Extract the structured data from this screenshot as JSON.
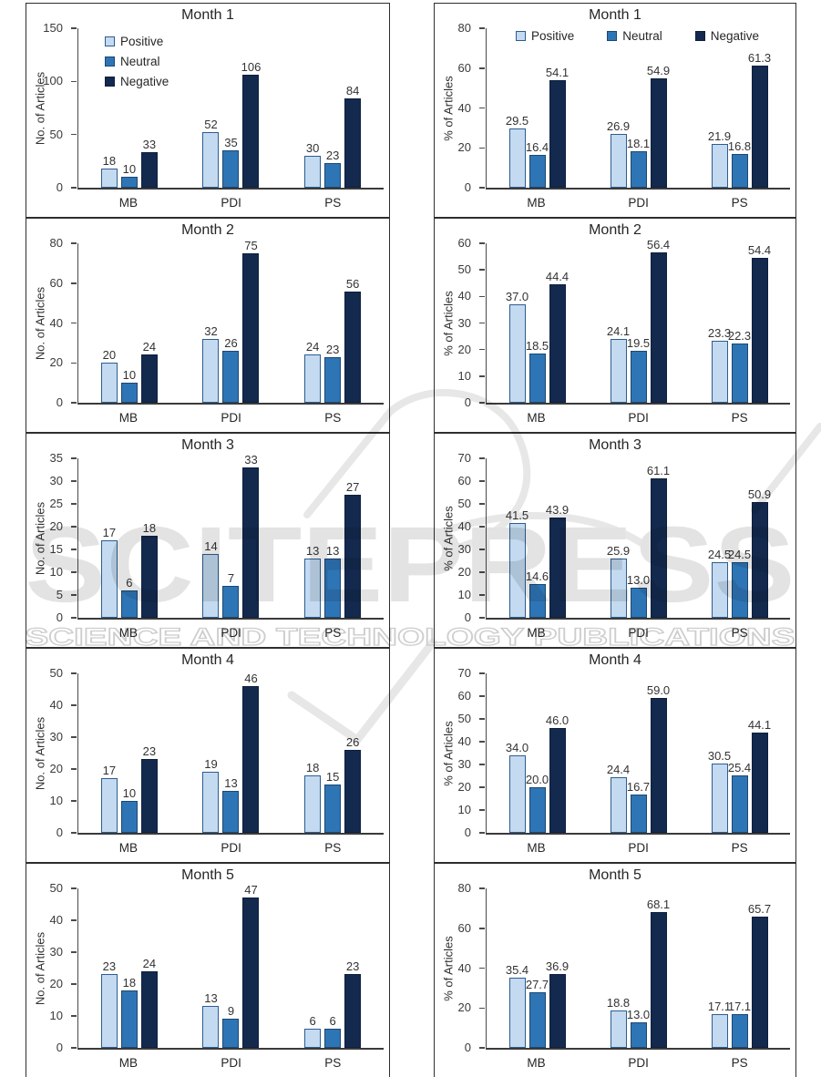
{
  "watermark": {
    "title": "SCITEPRESS",
    "subtitle": "SCIENCE AND TECHNOLOGY PUBLICATIONS"
  },
  "colors": {
    "positive_fill": "#C3DAF0",
    "positive_border": "#2E5C8F",
    "neutral_fill": "#2E75B6",
    "neutral_border": "#1C4770",
    "negative_fill": "#13294E",
    "negative_border": "#0E1F3C",
    "axis": "#3f3f3f",
    "watermark_gray": "#e3e3e3"
  },
  "chart_data": [
    {
      "type": "bar",
      "title": "Month 1",
      "ylabel": "No. of Articles",
      "ylim": [
        0,
        150
      ],
      "yticks": [
        0,
        50,
        100,
        150
      ],
      "categories": [
        "MB",
        "PDI",
        "PS"
      ],
      "legend": "vertical",
      "series": [
        {
          "name": "Positive",
          "values": [
            18,
            52,
            30
          ],
          "labels": [
            "18",
            "52",
            "30"
          ]
        },
        {
          "name": "Neutral",
          "values": [
            10,
            35,
            23
          ],
          "labels": [
            "10",
            "35",
            "23"
          ]
        },
        {
          "name": "Negative",
          "values": [
            33,
            106,
            84
          ],
          "labels": [
            "33",
            "106",
            "84"
          ]
        }
      ]
    },
    {
      "type": "bar",
      "title": "Month 1",
      "ylabel": "% of Articles",
      "ylim": [
        0,
        80
      ],
      "yticks": [
        0,
        20,
        40,
        60,
        80
      ],
      "categories": [
        "MB",
        "PDI",
        "PS"
      ],
      "legend": "horizontal",
      "series": [
        {
          "name": "Positive",
          "values": [
            29.5,
            26.9,
            21.9
          ],
          "labels": [
            "29.5",
            "26.9",
            "21.9"
          ]
        },
        {
          "name": "Neutral",
          "values": [
            16.4,
            18.1,
            16.8
          ],
          "labels": [
            "16.4",
            "18.1",
            "16.8"
          ]
        },
        {
          "name": "Negative",
          "values": [
            54.1,
            54.9,
            61.3
          ],
          "labels": [
            "54.1",
            "54.9",
            "61.3"
          ]
        }
      ]
    },
    {
      "type": "bar",
      "title": "Month 2",
      "ylabel": "No. of Articles",
      "ylim": [
        0,
        80
      ],
      "yticks": [
        0,
        20,
        40,
        60,
        80
      ],
      "categories": [
        "MB",
        "PDI",
        "PS"
      ],
      "legend": "none",
      "series": [
        {
          "name": "Positive",
          "values": [
            20,
            32,
            24
          ],
          "labels": [
            "20",
            "32",
            "24"
          ]
        },
        {
          "name": "Neutral",
          "values": [
            10,
            26,
            23
          ],
          "labels": [
            "10",
            "26",
            "23"
          ]
        },
        {
          "name": "Negative",
          "values": [
            24,
            75,
            56
          ],
          "labels": [
            "24",
            "75",
            "56"
          ]
        }
      ]
    },
    {
      "type": "bar",
      "title": "Month 2",
      "ylabel": "% of Articles",
      "ylim": [
        0,
        60
      ],
      "yticks": [
        0,
        10,
        20,
        30,
        40,
        50,
        60
      ],
      "categories": [
        "MB",
        "PDI",
        "PS"
      ],
      "legend": "none",
      "series": [
        {
          "name": "Positive",
          "values": [
            37.0,
            24.1,
            23.3
          ],
          "labels": [
            "37.0",
            "24.1",
            "23.3"
          ]
        },
        {
          "name": "Neutral",
          "values": [
            18.5,
            19.5,
            22.3
          ],
          "labels": [
            "18.5",
            "19.5",
            "22.3"
          ]
        },
        {
          "name": "Negative",
          "values": [
            44.4,
            56.4,
            54.4
          ],
          "labels": [
            "44.4",
            "56.4",
            "54.4"
          ]
        }
      ]
    },
    {
      "type": "bar",
      "title": "Month 3",
      "ylabel": "No. of Articles",
      "ylim": [
        0,
        35
      ],
      "yticks": [
        0,
        5,
        10,
        15,
        20,
        25,
        30,
        35
      ],
      "categories": [
        "MB",
        "PDI",
        "PS"
      ],
      "legend": "none",
      "series": [
        {
          "name": "Positive",
          "values": [
            17,
            14,
            13
          ],
          "labels": [
            "17",
            "14",
            "13"
          ]
        },
        {
          "name": "Neutral",
          "values": [
            6,
            7,
            13
          ],
          "labels": [
            "6",
            "7",
            "13"
          ]
        },
        {
          "name": "Negative",
          "values": [
            18,
            33,
            27
          ],
          "labels": [
            "18",
            "33",
            "27"
          ]
        }
      ]
    },
    {
      "type": "bar",
      "title": "Month 3",
      "ylabel": "% of Articles",
      "ylim": [
        0,
        70
      ],
      "yticks": [
        0,
        10,
        20,
        30,
        40,
        50,
        60,
        70
      ],
      "categories": [
        "MB",
        "PDI",
        "PS"
      ],
      "legend": "none",
      "series": [
        {
          "name": "Positive",
          "values": [
            41.5,
            25.9,
            24.5
          ],
          "labels": [
            "41.5",
            "25.9",
            "24.5"
          ]
        },
        {
          "name": "Neutral",
          "values": [
            14.6,
            13.0,
            24.5
          ],
          "labels": [
            "14.6",
            "13.0",
            "24.5"
          ]
        },
        {
          "name": "Negative",
          "values": [
            43.9,
            61.1,
            50.9
          ],
          "labels": [
            "43.9",
            "61.1",
            "50.9"
          ]
        }
      ]
    },
    {
      "type": "bar",
      "title": "Month 4",
      "ylabel": "No. of Articles",
      "ylim": [
        0,
        50
      ],
      "yticks": [
        0,
        10,
        20,
        30,
        40,
        50
      ],
      "categories": [
        "MB",
        "PDI",
        "PS"
      ],
      "legend": "none",
      "series": [
        {
          "name": "Positive",
          "values": [
            17,
            19,
            18
          ],
          "labels": [
            "17",
            "19",
            "18"
          ]
        },
        {
          "name": "Neutral",
          "values": [
            10,
            13,
            15
          ],
          "labels": [
            "10",
            "13",
            "15"
          ]
        },
        {
          "name": "Negative",
          "values": [
            23,
            46,
            26
          ],
          "labels": [
            "23",
            "46",
            "26"
          ]
        }
      ]
    },
    {
      "type": "bar",
      "title": "Month 4",
      "ylabel": "% of Articles",
      "ylim": [
        0,
        70
      ],
      "yticks": [
        0,
        10,
        20,
        30,
        40,
        50,
        60,
        70
      ],
      "categories": [
        "MB",
        "PDI",
        "PS"
      ],
      "legend": "none",
      "series": [
        {
          "name": "Positive",
          "values": [
            34.0,
            24.4,
            30.5
          ],
          "labels": [
            "34.0",
            "24.4",
            "30.5"
          ]
        },
        {
          "name": "Neutral",
          "values": [
            20.0,
            16.7,
            25.4
          ],
          "labels": [
            "20.0",
            "16.7",
            "25.4"
          ]
        },
        {
          "name": "Negative",
          "values": [
            46.0,
            59.0,
            44.1
          ],
          "labels": [
            "46.0",
            "59.0",
            "44.1"
          ]
        }
      ]
    },
    {
      "type": "bar",
      "title": "Month 5",
      "ylabel": "No. of Articles",
      "ylim": [
        0,
        50
      ],
      "yticks": [
        0,
        10,
        20,
        30,
        40,
        50
      ],
      "categories": [
        "MB",
        "PDI",
        "PS"
      ],
      "legend": "none",
      "series": [
        {
          "name": "Positive",
          "values": [
            23,
            13,
            6
          ],
          "labels": [
            "23",
            "13",
            "6"
          ]
        },
        {
          "name": "Neutral",
          "values": [
            18,
            9,
            6
          ],
          "labels": [
            "18",
            "9",
            "6"
          ]
        },
        {
          "name": "Negative",
          "values": [
            24,
            47,
            23
          ],
          "labels": [
            "24",
            "47",
            "23"
          ]
        }
      ]
    },
    {
      "type": "bar",
      "title": "Month 5",
      "ylabel": "% of Articles",
      "ylim": [
        0,
        80
      ],
      "yticks": [
        0,
        20,
        40,
        60,
        80
      ],
      "categories": [
        "MB",
        "PDI",
        "PS"
      ],
      "legend": "none",
      "series": [
        {
          "name": "Positive",
          "values": [
            35.4,
            18.8,
            17.1
          ],
          "labels": [
            "35.4",
            "18.8",
            "17.1"
          ]
        },
        {
          "name": "Neutral",
          "values": [
            27.7,
            13.0,
            17.1
          ],
          "labels": [
            "27.7",
            "13.0",
            "17.1"
          ]
        },
        {
          "name": "Negative",
          "values": [
            36.9,
            68.1,
            65.7
          ],
          "labels": [
            "36.9",
            "68.1",
            "65.7"
          ]
        }
      ]
    }
  ]
}
